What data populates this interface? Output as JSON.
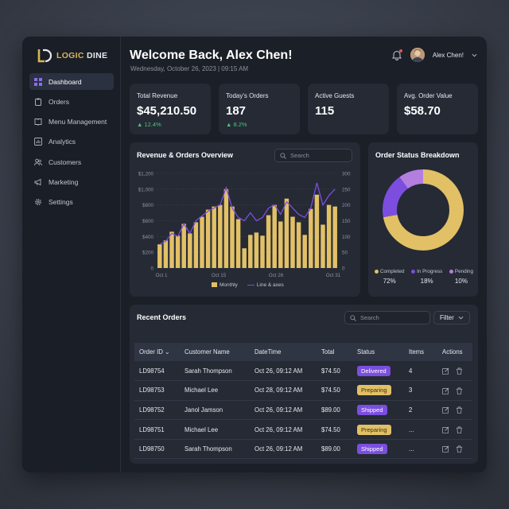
{
  "brand": {
    "logo_gold": "LOGIC",
    "logo_white": "DINE"
  },
  "sidebar": {
    "items": [
      {
        "label": "Dashboard",
        "icon": "grid-icon",
        "active": true
      },
      {
        "label": "Orders",
        "icon": "clipboard-icon"
      },
      {
        "label": "Menu Management",
        "icon": "book-icon"
      },
      {
        "label": "Analytics",
        "icon": "bar-chart-icon"
      },
      {
        "label": "Customers",
        "icon": "users-icon"
      },
      {
        "label": "Marketing",
        "icon": "megaphone-icon"
      },
      {
        "label": "Settings",
        "icon": "gear-icon"
      }
    ]
  },
  "header": {
    "welcome": "Welcome Back, Alex Chen!",
    "date": "Wednesday, October 26, 2023 | 09:15 AM",
    "user_name": "Alex Chen!"
  },
  "stats": [
    {
      "label": "Total Revenue",
      "value": "$45,210.50",
      "delta": "▲ 12.4%"
    },
    {
      "label": "Today's Orders",
      "value": "187",
      "delta": "▲ 8.2%"
    },
    {
      "label": "Active Guests",
      "value": "115",
      "delta": ""
    },
    {
      "label": "Avg. Order Value",
      "value": "$58.70",
      "delta": ""
    }
  ],
  "revenue_panel": {
    "title": "Revenue & Orders Overview",
    "search_placeholder": "Search"
  },
  "status_panel": {
    "title": "Order Status Breakdown"
  },
  "orders_panel": {
    "title": "Recent Orders",
    "search_placeholder": "Search",
    "filter_label": "Filter"
  },
  "colors": {
    "gold": "#e2c066",
    "purple": "#7b4ee0",
    "lavender": "#b37ee0",
    "gain": "#4cc27a"
  },
  "chart_data": [
    {
      "type": "bar",
      "title": "Revenue & Orders Overview",
      "y_left_ticks": [
        "$1,200",
        "$1,000",
        "$800",
        "$600",
        "$400",
        "$200",
        "0"
      ],
      "y_right_ticks": [
        "300",
        "250",
        "200",
        "150",
        "100",
        "50",
        "0"
      ],
      "x_ticks": [
        "Oct 1",
        "Oct 15",
        "Oct 26",
        "Oct 31"
      ],
      "ylim": [
        0,
        1200
      ],
      "y2lim": [
        0,
        300
      ],
      "series": [
        {
          "name": "Monthly",
          "axis": "left",
          "values": [
            300,
            350,
            460,
            410,
            560,
            440,
            580,
            650,
            740,
            780,
            800,
            1000,
            780,
            620,
            250,
            420,
            450,
            410,
            670,
            800,
            590,
            880,
            650,
            580,
            420,
            750,
            930,
            550,
            800,
            780
          ]
        },
        {
          "name": "Line & axes",
          "axis": "right",
          "values": [
            75,
            85,
            110,
            100,
            140,
            110,
            150,
            165,
            180,
            190,
            200,
            255,
            190,
            160,
            150,
            175,
            150,
            160,
            190,
            200,
            170,
            210,
            190,
            170,
            160,
            190,
            270,
            200,
            230,
            250
          ]
        }
      ]
    },
    {
      "type": "pie",
      "title": "Order Status Breakdown",
      "categories": [
        "Completed",
        "In Progress",
        "Pending"
      ],
      "values": [
        72,
        18,
        10
      ],
      "labels": [
        "72%",
        "18%",
        "10%"
      ],
      "colors": [
        "#e2c066",
        "#7b4ee0",
        "#b37ee0"
      ]
    }
  ],
  "orders": {
    "columns": [
      "Order ID ⌄",
      "Customer Name",
      "DateTime",
      "Total",
      "Status",
      "Items",
      "Actions"
    ],
    "rows": [
      {
        "id": "LD98754",
        "customer": "Sarah Thompson",
        "datetime": "Oct 26, 09:12 AM",
        "total": "$74.50",
        "status": "Delivered",
        "items": "4"
      },
      {
        "id": "LD98753",
        "customer": "Michael Lee",
        "datetime": "Oct 28, 09:12 AM",
        "total": "$74.50",
        "status": "Preparing",
        "items": "3"
      },
      {
        "id": "LD98752",
        "customer": "Janol Jamson",
        "datetime": "Oct 26, 09:12 AM",
        "total": "$89.00",
        "status": "Shipped",
        "items": "2"
      },
      {
        "id": "LD98751",
        "customer": "Michael Lee",
        "datetime": "Oct 26, 09:12 AM",
        "total": "$74.50",
        "status": "Preparing",
        "items": "..."
      },
      {
        "id": "LD98750",
        "customer": "Sarah Thompson",
        "datetime": "Oct 26, 09:12 AM",
        "total": "$89.00",
        "status": "Shipped",
        "items": "..."
      }
    ]
  }
}
